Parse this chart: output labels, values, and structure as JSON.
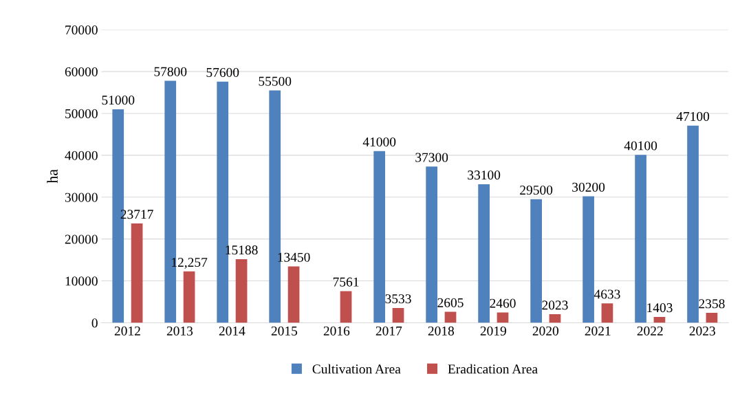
{
  "chart_data": {
    "type": "bar",
    "categories": [
      "2012",
      "2013",
      "2014",
      "2015",
      "2016",
      "2017",
      "2018",
      "2019",
      "2020",
      "2021",
      "2022",
      "2023"
    ],
    "ylabel": "ha",
    "ylim": [
      0,
      70000
    ],
    "yticks": [
      0,
      10000,
      20000,
      30000,
      40000,
      50000,
      60000,
      70000
    ],
    "grid": "y",
    "legend": "bottom",
    "series": [
      {
        "name": "Cultivation Area",
        "color": "#4f81bd",
        "values": [
          51000,
          57800,
          57600,
          55500,
          null,
          41000,
          37300,
          33100,
          29500,
          30200,
          40100,
          47100
        ],
        "value_labels": [
          "51000",
          "57800",
          "57600",
          "55500",
          null,
          "41000",
          "37300",
          "33100",
          "29500",
          "30200",
          "40100",
          "47100"
        ]
      },
      {
        "name": "Eradication Area",
        "color": "#c0504d",
        "values": [
          23717,
          12257,
          15188,
          13450,
          7561,
          3533,
          2605,
          2460,
          2023,
          4633,
          1403,
          2358
        ],
        "value_labels": [
          "23717",
          "12,257",
          "15188",
          "13450",
          "7561",
          "3533",
          "2605",
          "2460",
          "2023",
          "4633",
          "1403",
          "2358"
        ]
      }
    ]
  }
}
